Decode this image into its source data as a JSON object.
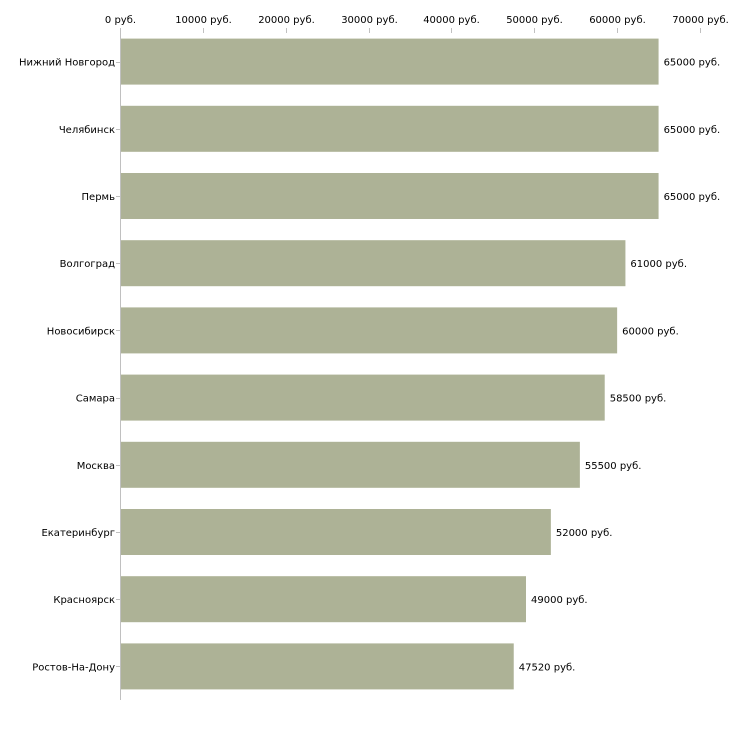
{
  "chart_data": {
    "type": "bar",
    "orientation": "horizontal",
    "title": "",
    "xlabel": "",
    "ylabel": "",
    "xlim": [
      0,
      70000
    ],
    "x_ticks": [
      0,
      10000,
      20000,
      30000,
      40000,
      50000,
      60000,
      70000
    ],
    "x_tick_labels": [
      "0 руб.",
      "10000 руб.",
      "20000 руб.",
      "30000 руб.",
      "40000 руб.",
      "50000 руб.",
      "60000 руб.",
      "70000 руб."
    ],
    "axis_position": "top",
    "categories": [
      "Нижний Новгород",
      "Челябинск",
      "Пермь",
      "Волгоград",
      "Новосибирск",
      "Самара",
      "Москва",
      "Екатеринбург",
      "Красноярск",
      "Ростов-На-Дону"
    ],
    "values": [
      65000,
      65000,
      65000,
      61000,
      60000,
      58500,
      55500,
      52000,
      49000,
      47520
    ],
    "value_labels": [
      "65000 руб.",
      "65000 руб.",
      "65000 руб.",
      "61000 руб.",
      "60000 руб.",
      "58500 руб.",
      "55500 руб.",
      "52000 руб.",
      "49000 руб.",
      "47520 руб."
    ],
    "bar_color": "#adb296",
    "axis_color": "#c0c0c0"
  }
}
